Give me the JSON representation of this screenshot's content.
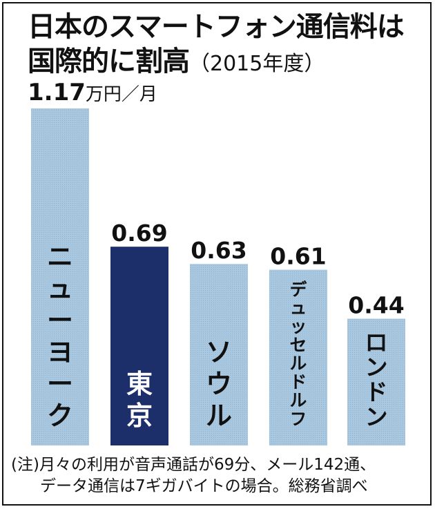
{
  "title": {
    "line1": "日本のスマートフォン通信料は",
    "line2_main": "国際的に割高",
    "line2_sub": "（2015年度）"
  },
  "unit": {
    "first_value": "1.17",
    "unit_text": "万円／月"
  },
  "note": {
    "line1": "(注)月々の利用が音声通話が69分、メール142通、",
    "line2": "データ通信は7ギガバイトの場合。総務省調べ"
  },
  "colors": {
    "bar_light": "#a9c8e0",
    "bar_highlight": "#1c2f6b",
    "text": "#111111"
  },
  "chart_data": {
    "type": "bar",
    "title": "日本のスマートフォン通信料は国際的に割高（2015年度）",
    "ylabel": "万円／月",
    "ylim": [
      0,
      1.17
    ],
    "grid": false,
    "categories": [
      "ニューヨーク",
      "東京",
      "ソウル",
      "デュッセルドルフ",
      "ロンドン"
    ],
    "values": [
      1.17,
      0.69,
      0.63,
      0.61,
      0.44
    ],
    "value_labels": [
      "1.17",
      "0.69",
      "0.63",
      "0.61",
      "0.44"
    ],
    "highlight_index": 1
  }
}
